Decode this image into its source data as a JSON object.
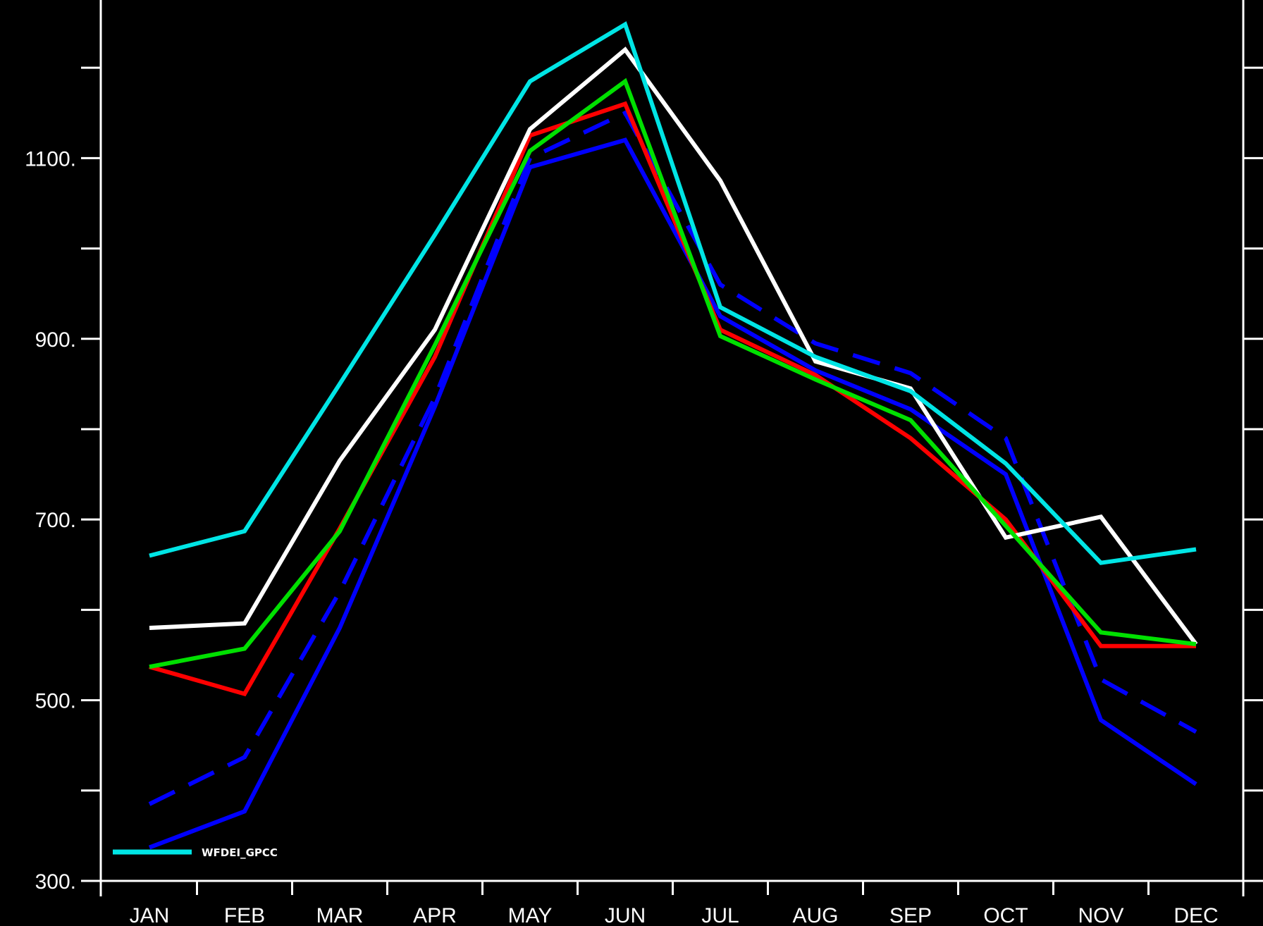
{
  "chart_data": {
    "type": "line",
    "title": "",
    "xlabel": "",
    "ylabel": "",
    "categories": [
      "JAN",
      "FEB",
      "MAR",
      "APR",
      "MAY",
      "JUN",
      "JUL",
      "AUG",
      "SEP",
      "OCT",
      "NOV",
      "DEC"
    ],
    "ylim": [
      300,
      1275
    ],
    "yticks_major": [
      300,
      500,
      700,
      900,
      1100
    ],
    "yticks_major_labels": [
      "300.",
      "500.",
      "700.",
      "900.",
      "1100."
    ],
    "yticks_minor": [
      400,
      600,
      800,
      1000,
      1200
    ],
    "grid": false,
    "background": "#000000",
    "axis_color": "#ffffff",
    "legend": {
      "placement": "bottom-left",
      "entries": [
        {
          "label": "WFDEI_GPCC",
          "color": "#00e5e5"
        }
      ]
    },
    "series": [
      {
        "color": "#0000ff",
        "dash": false,
        "values": [
          337,
          377,
          580,
          825,
          1090,
          1120,
          925,
          865,
          822,
          750,
          478,
          407
        ]
      },
      {
        "color": "#0000ff",
        "dash": true,
        "values": [
          385,
          437,
          620,
          835,
          1100,
          1150,
          960,
          895,
          862,
          790,
          523,
          465
        ]
      },
      {
        "color": "#ff0000",
        "dash": false,
        "values": [
          537,
          507,
          690,
          880,
          1125,
          1160,
          910,
          860,
          790,
          700,
          560,
          560
        ]
      },
      {
        "color": "#ffffff",
        "dash": false,
        "values": [
          580,
          585,
          765,
          910,
          1132,
          1220,
          1075,
          875,
          845,
          680,
          703,
          562
        ]
      },
      {
        "color": "#00e000",
        "dash": false,
        "values": [
          537,
          557,
          687,
          893,
          1108,
          1185,
          903,
          855,
          810,
          693,
          575,
          562
        ]
      },
      {
        "name": "WFDEI_GPCC",
        "color": "#00e5e5",
        "dash": false,
        "values": [
          660,
          687,
          850,
          1015,
          1185,
          1248,
          935,
          880,
          842,
          762,
          652,
          667
        ]
      }
    ]
  }
}
